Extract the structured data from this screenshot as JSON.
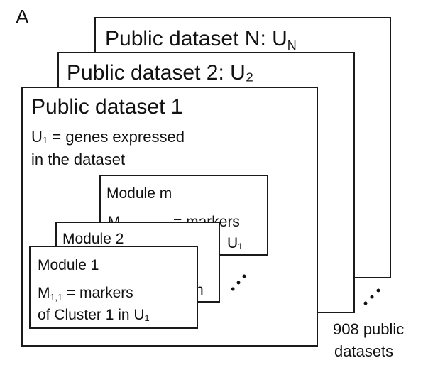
{
  "panel_label": "A",
  "datasets": [
    {
      "title": "Public dataset N: U",
      "title_sub": "N"
    },
    {
      "title": "Public dataset 2: U₂"
    },
    {
      "title": "Public dataset 1",
      "line1": "U₁ = genes expressed",
      "line2": "in the dataset"
    }
  ],
  "modules": [
    {
      "title": "Module m",
      "line1_partial": "M",
      "line1_rest": "= markers",
      "line2_tail": "U₁"
    },
    {
      "title": "Module 2",
      "line_tail": "n"
    },
    {
      "title": "Module 1",
      "m_letter": "M",
      "m_sub": "1,1",
      "line1_rest": " = markers",
      "line2": "of Cluster 1 in U₁"
    }
  ],
  "count_label_line1": "908 public",
  "count_label_line2": "datasets"
}
